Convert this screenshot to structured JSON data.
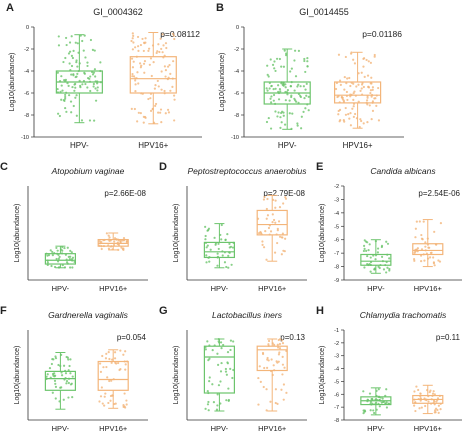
{
  "colors": {
    "green": "#6cc46c",
    "orange": "#f3b57a",
    "axis": "#333333",
    "median": "#555555"
  },
  "chart_data": [
    {
      "panel_letter": "A",
      "type": "box",
      "title": "GI_0004362",
      "title_style": "normal",
      "p_value": "p=0.08112",
      "ylabel": "Log10(abundance)",
      "yticks": [
        "0",
        "-2",
        "-4",
        "-6",
        "-8",
        "-10"
      ],
      "ylim": [
        -10,
        0
      ],
      "categories": [
        "HPV-",
        "HPV16+"
      ],
      "boxes": [
        {
          "name": "HPV-",
          "whisker_low": -8.7,
          "q1": -6.0,
          "median": -5.0,
          "q3": -4.0,
          "whisker_high": -0.7,
          "n_points": 110
        },
        {
          "name": "HPV16+",
          "whisker_low": -8.8,
          "q1": -6.0,
          "median": -4.7,
          "q3": -2.7,
          "whisker_high": -0.5,
          "n_points": 110
        }
      ]
    },
    {
      "panel_letter": "B",
      "type": "box",
      "title": "GI_0014455",
      "title_style": "normal",
      "p_value": "p=0.01186",
      "ylabel": "Log10(abundance)",
      "yticks": [
        "0",
        "-2",
        "-4",
        "-6",
        "-8",
        "-10"
      ],
      "ylim": [
        -10,
        0
      ],
      "categories": [
        "HPV-",
        "HPV16+"
      ],
      "boxes": [
        {
          "name": "HPV-",
          "whisker_low": -9.3,
          "q1": -7.0,
          "median": -6.0,
          "q3": -5.0,
          "whisker_high": -2.0,
          "n_points": 110
        },
        {
          "name": "HPV16+",
          "whisker_low": -9.2,
          "q1": -6.9,
          "median": -6.2,
          "q3": -5.0,
          "whisker_high": -2.3,
          "n_points": 110
        }
      ]
    },
    {
      "panel_letter": "C",
      "type": "box",
      "title": "Atopobium vaginae",
      "title_style": "italic",
      "p_value": "p=2.66E-08",
      "ylabel": "Log10(abundance)",
      "yticks": [],
      "ylim": [
        -10,
        0
      ],
      "categories": [
        "HPV-",
        "HPV16+"
      ],
      "boxes": [
        {
          "name": "HPV-",
          "whisker_low": -8.7,
          "q1": -8.3,
          "median": -7.9,
          "q3": -7.2,
          "whisker_high": -6.4,
          "n_points": 45
        },
        {
          "name": "HPV16+",
          "whisker_low": -6.8,
          "q1": -6.4,
          "median": -6.1,
          "q3": -5.7,
          "whisker_high": -5.0,
          "n_points": 45
        }
      ]
    },
    {
      "panel_letter": "D",
      "type": "box",
      "title": "Peptostreptococcus anaerobius",
      "title_style": "italic",
      "p_value": "p=2.79E-08",
      "ylabel": "Log10(abundance)",
      "yticks": [],
      "ylim": [
        -10,
        0
      ],
      "categories": [
        "HPV-",
        "HPV16+"
      ],
      "boxes": [
        {
          "name": "HPV-",
          "whisker_low": -8.7,
          "q1": -7.6,
          "median": -7.0,
          "q3": -6.0,
          "whisker_high": -4.0,
          "n_points": 45
        },
        {
          "name": "HPV16+",
          "whisker_low": -8.0,
          "q1": -5.2,
          "median": -4.1,
          "q3": -2.6,
          "whisker_high": -1.0,
          "n_points": 45
        }
      ]
    },
    {
      "panel_letter": "E",
      "type": "box",
      "title": "Candida albicans",
      "title_style": "italic",
      "p_value": "p=2.54E-06",
      "ylabel": "Log10(abundance)",
      "yticks": [
        "-2",
        "-3",
        "-4",
        "-5",
        "-6",
        "-7",
        "-8",
        "-9"
      ],
      "ylim": [
        -9,
        -2
      ],
      "categories": [
        "HPV-",
        "HPV16+"
      ],
      "boxes": [
        {
          "name": "HPV-",
          "whisker_low": -8.5,
          "q1": -7.9,
          "median": -7.6,
          "q3": -7.1,
          "whisker_high": -6.0,
          "n_points": 45
        },
        {
          "name": "HPV16+",
          "whisker_low": -8.0,
          "q1": -7.1,
          "median": -6.8,
          "q3": -6.3,
          "whisker_high": -4.5,
          "n_points": 45
        }
      ]
    },
    {
      "panel_letter": "F",
      "type": "box",
      "title": "Gardnerella vaginalis",
      "title_style": "italic",
      "p_value": "p=0.054",
      "ylabel": "Log10(abundance)",
      "yticks": [],
      "ylim": [
        -10,
        0
      ],
      "categories": [
        "HPV-",
        "HPV16+"
      ],
      "boxes": [
        {
          "name": "HPV-",
          "whisker_low": -8.8,
          "q1": -6.7,
          "median": -5.4,
          "q3": -4.6,
          "whisker_high": -2.5,
          "n_points": 50
        },
        {
          "name": "HPV16+",
          "whisker_low": -8.7,
          "q1": -6.7,
          "median": -5.5,
          "q3": -3.5,
          "whisker_high": -2.2,
          "n_points": 50
        }
      ]
    },
    {
      "panel_letter": "G",
      "type": "box",
      "title": "Lactobacillus iners",
      "title_style": "italic",
      "p_value": "p=0.13",
      "ylabel": "Log10(abundance)",
      "yticks": [],
      "ylim": [
        -10,
        0
      ],
      "categories": [
        "HPV-",
        "HPV16+"
      ],
      "boxes": [
        {
          "name": "HPV-",
          "whisker_low": -9.0,
          "q1": -7.0,
          "median": -3.0,
          "q3": -1.8,
          "whisker_high": -1.0,
          "n_points": 50
        },
        {
          "name": "HPV16+",
          "whisker_low": -9.0,
          "q1": -4.5,
          "median": -2.2,
          "q3": -1.8,
          "whisker_high": -1.0,
          "n_points": 50
        }
      ]
    },
    {
      "panel_letter": "H",
      "type": "box",
      "title": "Chlamydia trachomatis",
      "title_style": "italic",
      "p_value": "p=0.11",
      "ylabel": "Log10(abundance)",
      "yticks": [
        "-1",
        "-2",
        "-3",
        "-4",
        "-5",
        "-6",
        "-7",
        "-8"
      ],
      "ylim": [
        -8,
        -1
      ],
      "categories": [
        "HPV-",
        "HPV16+"
      ],
      "boxes": [
        {
          "name": "HPV-",
          "whisker_low": -7.6,
          "q1": -6.8,
          "median": -6.5,
          "q3": -6.2,
          "whisker_high": -5.5,
          "n_points": 50
        },
        {
          "name": "HPV16+",
          "whisker_low": -7.5,
          "q1": -6.7,
          "median": -6.4,
          "q3": -6.1,
          "whisker_high": -5.3,
          "n_points": 50
        }
      ]
    }
  ]
}
